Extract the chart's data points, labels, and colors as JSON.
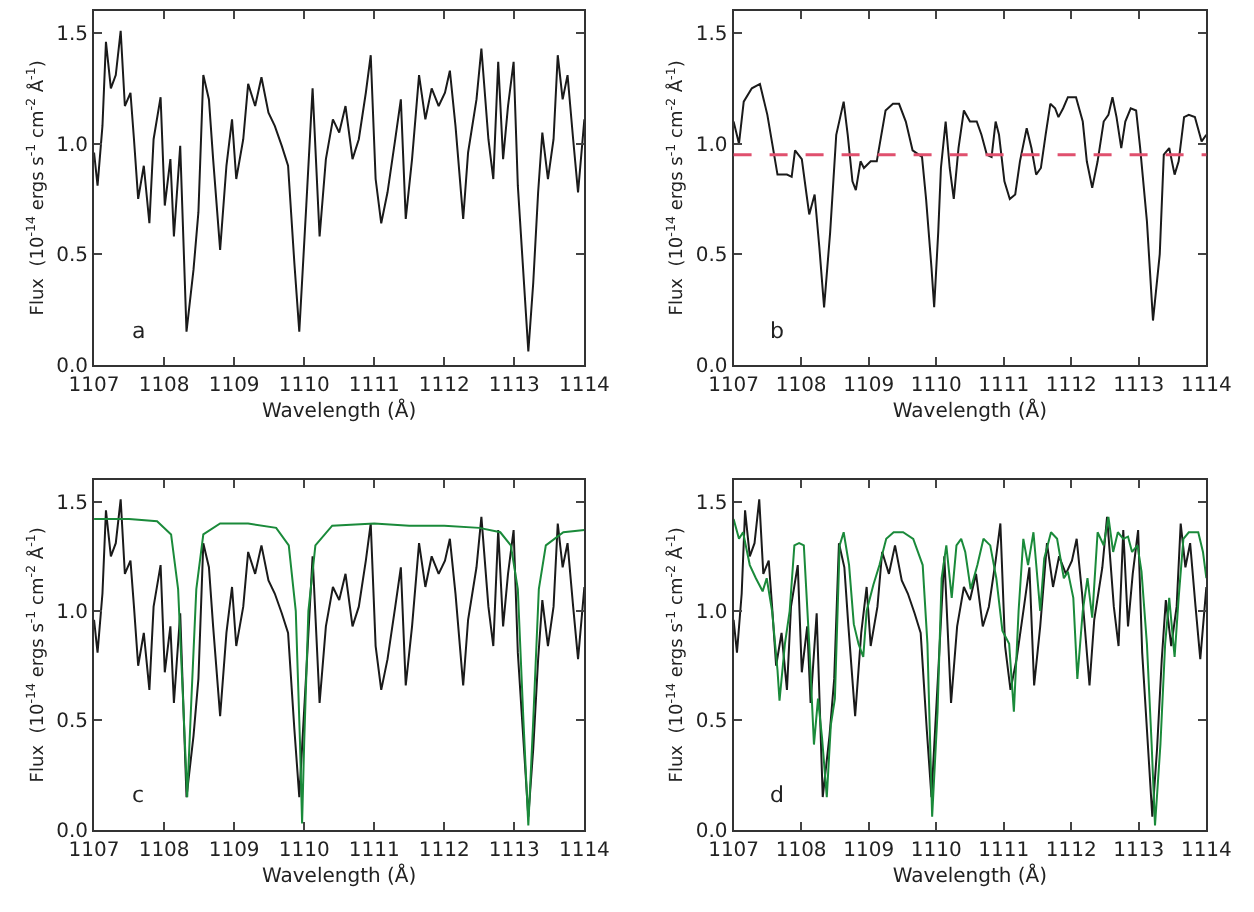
{
  "chart_data": [
    {
      "type": "line",
      "xlabel": "Wavelength (Å)",
      "ylabel": "Flux  (10$^{-14}$ ergs s$^{-1}$ cm$^{-2}$ Å$^{-1}$)",
      "xlim": [
        1107,
        1114
      ],
      "ylim": [
        0,
        1.6
      ],
      "xticks": [
        1107,
        1108,
        1109,
        1110,
        1111,
        1112,
        1113,
        1114
      ],
      "yticks": [
        {
          "value": 0,
          "label": "0.0"
        },
        {
          "value": 0.5,
          "label": "0.5"
        },
        {
          "value": 1,
          "label": "1.0"
        },
        {
          "value": 1.5,
          "label": "1.5"
        }
      ],
      "annotations": [
        "a"
      ],
      "series": [
        {
          "color": "#1a1a1a",
          "x": [
            1107.0,
            1107.05,
            1107.12,
            1107.17,
            1107.24,
            1107.31,
            1107.38,
            1107.44,
            1107.52,
            1107.57,
            1107.63,
            1107.71,
            1107.79,
            1107.85,
            1107.95,
            1108.01,
            1108.09,
            1108.14,
            1108.23,
            1108.32,
            1108.42,
            1108.49,
            1108.56,
            1108.64,
            1108.7,
            1108.8,
            1108.89,
            1108.97,
            1109.03,
            1109.13,
            1109.2,
            1109.3,
            1109.39,
            1109.49,
            1109.58,
            1109.68,
            1109.77,
            1109.86,
            1109.93,
            1110.03,
            1110.12,
            1110.22,
            1110.31,
            1110.41,
            1110.5,
            1110.59,
            1110.69,
            1110.78,
            1110.88,
            1110.95,
            1111.02,
            1111.1,
            1111.19,
            1111.3,
            1111.38,
            1111.45,
            1111.54,
            1111.64,
            1111.73,
            1111.82,
            1111.92,
            1112.01,
            1112.08,
            1112.16,
            1112.27,
            1112.34,
            1112.46,
            1112.53,
            1112.63,
            1112.7,
            1112.77,
            1112.84,
            1112.91,
            1112.99,
            1113.05,
            1113.12,
            1113.2,
            1113.27,
            1113.34,
            1113.4,
            1113.48,
            1113.56,
            1113.62,
            1113.69,
            1113.76,
            1113.84,
            1113.91,
            1114.0
          ],
          "values": [
            0.96,
            0.81,
            1.08,
            1.46,
            1.25,
            1.31,
            1.51,
            1.17,
            1.23,
            1.02,
            0.75,
            0.9,
            0.64,
            1.02,
            1.21,
            0.72,
            0.93,
            0.58,
            0.99,
            0.15,
            0.43,
            0.69,
            1.31,
            1.2,
            0.93,
            0.52,
            0.9,
            1.11,
            0.84,
            1.02,
            1.27,
            1.17,
            1.3,
            1.14,
            1.08,
            0.99,
            0.9,
            0.46,
            0.15,
            0.72,
            1.25,
            0.58,
            0.93,
            1.11,
            1.05,
            1.17,
            0.93,
            1.02,
            1.23,
            1.4,
            0.84,
            0.64,
            0.78,
            1.02,
            1.2,
            0.66,
            0.93,
            1.31,
            1.11,
            1.25,
            1.17,
            1.23,
            1.33,
            1.08,
            0.66,
            0.96,
            1.2,
            1.43,
            1.02,
            0.84,
            1.37,
            0.93,
            1.17,
            1.37,
            0.81,
            0.46,
            0.06,
            0.37,
            0.78,
            1.05,
            0.84,
            1.02,
            1.4,
            1.2,
            1.31,
            1.02,
            0.78,
            1.11
          ]
        }
      ]
    },
    {
      "type": "line",
      "xlabel": "Wavelength (Å)",
      "ylabel": "Flux  (10$^{-14}$ ergs s$^{-1}$ cm$^{-2}$ Å$^{-1}$)",
      "xlim": [
        1107,
        1114
      ],
      "ylim": [
        0,
        1.6
      ],
      "xticks": [
        1107,
        1108,
        1109,
        1110,
        1111,
        1112,
        1113,
        1114
      ],
      "yticks": [
        {
          "value": 0,
          "label": "0.0"
        },
        {
          "value": 0.5,
          "label": "0.5"
        },
        {
          "value": 1,
          "label": "1.0"
        },
        {
          "value": 1.5,
          "label": "1.5"
        }
      ],
      "annotations": [
        "b"
      ],
      "ref_lines": [
        {
          "axis": "y",
          "value": 0.95,
          "color": "#e0506e",
          "line_style": "dashed"
        }
      ],
      "series": [
        {
          "color": "#1a1a1a",
          "x": [
            1107.0,
            1107.08,
            1107.15,
            1107.27,
            1107.39,
            1107.5,
            1107.6,
            1107.65,
            1107.79,
            1107.86,
            1107.91,
            1108.01,
            1108.08,
            1108.12,
            1108.2,
            1108.27,
            1108.34,
            1108.43,
            1108.52,
            1108.63,
            1108.69,
            1108.76,
            1108.81,
            1108.88,
            1108.93,
            1109.03,
            1109.12,
            1109.25,
            1109.36,
            1109.45,
            1109.55,
            1109.65,
            1109.79,
            1109.85,
            1109.93,
            1109.97,
            1110.03,
            1110.07,
            1110.14,
            1110.2,
            1110.26,
            1110.33,
            1110.41,
            1110.5,
            1110.6,
            1110.67,
            1110.75,
            1110.82,
            1110.88,
            1110.93,
            1111.01,
            1111.09,
            1111.17,
            1111.24,
            1111.34,
            1111.41,
            1111.48,
            1111.55,
            1111.62,
            1111.69,
            1111.76,
            1111.81,
            1111.88,
            1111.95,
            1112.07,
            1112.17,
            1112.23,
            1112.31,
            1112.39,
            1112.48,
            1112.55,
            1112.61,
            1112.67,
            1112.74,
            1112.8,
            1112.88,
            1112.96,
            1113.02,
            1113.12,
            1113.21,
            1113.31,
            1113.37,
            1113.45,
            1113.53,
            1113.59,
            1113.67,
            1113.74,
            1113.83,
            1113.93,
            1114.0
          ],
          "values": [
            1.1,
            1.0,
            1.19,
            1.25,
            1.27,
            1.13,
            0.95,
            0.86,
            0.86,
            0.85,
            0.97,
            0.93,
            0.77,
            0.68,
            0.77,
            0.53,
            0.26,
            0.6,
            1.04,
            1.19,
            1.04,
            0.83,
            0.79,
            0.92,
            0.89,
            0.92,
            0.92,
            1.15,
            1.18,
            1.18,
            1.1,
            0.97,
            0.94,
            0.75,
            0.44,
            0.26,
            0.6,
            0.89,
            1.1,
            0.89,
            0.75,
            0.98,
            1.15,
            1.1,
            1.1,
            1.04,
            0.95,
            0.94,
            1.1,
            1.04,
            0.83,
            0.75,
            0.77,
            0.92,
            1.07,
            0.98,
            0.86,
            0.89,
            1.04,
            1.18,
            1.16,
            1.12,
            1.16,
            1.21,
            1.21,
            1.1,
            0.92,
            0.8,
            0.92,
            1.1,
            1.13,
            1.21,
            1.12,
            0.98,
            1.1,
            1.16,
            1.15,
            0.98,
            0.65,
            0.2,
            0.5,
            0.95,
            0.98,
            0.86,
            0.92,
            1.12,
            1.13,
            1.12,
            1.01,
            1.04
          ]
        }
      ]
    },
    {
      "type": "line",
      "xlabel": "Wavelength (Å)",
      "ylabel": "Flux  (10$^{-14}$ ergs s$^{-1}$ cm$^{-2}$ Å$^{-1}$)",
      "xlim": [
        1107,
        1114
      ],
      "ylim": [
        0,
        1.6
      ],
      "xticks": [
        1107,
        1108,
        1109,
        1110,
        1111,
        1112,
        1113,
        1114
      ],
      "yticks": [
        {
          "value": 0,
          "label": "0.0"
        },
        {
          "value": 0.5,
          "label": "0.5"
        },
        {
          "value": 1,
          "label": "1.0"
        },
        {
          "value": 1.5,
          "label": "1.5"
        }
      ],
      "annotations": [
        "c"
      ],
      "series": [
        {
          "color": "#1a1a1a",
          "x": [
            1107.0,
            1107.05,
            1107.12,
            1107.17,
            1107.24,
            1107.31,
            1107.38,
            1107.44,
            1107.52,
            1107.57,
            1107.63,
            1107.71,
            1107.79,
            1107.85,
            1107.95,
            1108.01,
            1108.09,
            1108.14,
            1108.23,
            1108.32,
            1108.42,
            1108.49,
            1108.56,
            1108.64,
            1108.7,
            1108.8,
            1108.89,
            1108.97,
            1109.03,
            1109.13,
            1109.2,
            1109.3,
            1109.39,
            1109.49,
            1109.58,
            1109.68,
            1109.77,
            1109.86,
            1109.93,
            1110.03,
            1110.12,
            1110.22,
            1110.31,
            1110.41,
            1110.5,
            1110.59,
            1110.69,
            1110.78,
            1110.88,
            1110.95,
            1111.02,
            1111.1,
            1111.19,
            1111.3,
            1111.38,
            1111.45,
            1111.54,
            1111.64,
            1111.73,
            1111.82,
            1111.92,
            1112.01,
            1112.08,
            1112.16,
            1112.27,
            1112.34,
            1112.46,
            1112.53,
            1112.63,
            1112.7,
            1112.77,
            1112.84,
            1112.91,
            1112.99,
            1113.05,
            1113.12,
            1113.2,
            1113.27,
            1113.34,
            1113.4,
            1113.48,
            1113.56,
            1113.62,
            1113.69,
            1113.76,
            1113.84,
            1113.91,
            1114.0
          ],
          "values": [
            0.96,
            0.81,
            1.08,
            1.46,
            1.25,
            1.31,
            1.51,
            1.17,
            1.23,
            1.02,
            0.75,
            0.9,
            0.64,
            1.02,
            1.21,
            0.72,
            0.93,
            0.58,
            0.99,
            0.15,
            0.43,
            0.69,
            1.31,
            1.2,
            0.93,
            0.52,
            0.9,
            1.11,
            0.84,
            1.02,
            1.27,
            1.17,
            1.3,
            1.14,
            1.08,
            0.99,
            0.9,
            0.46,
            0.15,
            0.72,
            1.25,
            0.58,
            0.93,
            1.11,
            1.05,
            1.17,
            0.93,
            1.02,
            1.23,
            1.4,
            0.84,
            0.64,
            0.78,
            1.02,
            1.2,
            0.66,
            0.93,
            1.31,
            1.11,
            1.25,
            1.17,
            1.23,
            1.33,
            1.08,
            0.66,
            0.96,
            1.2,
            1.43,
            1.02,
            0.84,
            1.37,
            0.93,
            1.17,
            1.37,
            0.81,
            0.46,
            0.06,
            0.37,
            0.78,
            1.05,
            0.84,
            1.02,
            1.4,
            1.2,
            1.31,
            1.02,
            0.78,
            1.11
          ]
        },
        {
          "color": "#1a8a3a",
          "x": [
            1107.0,
            1107.5,
            1107.9,
            1108.1,
            1108.2,
            1108.27,
            1108.33,
            1108.39,
            1108.46,
            1108.56,
            1108.8,
            1109.2,
            1109.6,
            1109.78,
            1109.88,
            1109.94,
            1109.97,
            1110.0,
            1110.06,
            1110.16,
            1110.4,
            1111.0,
            1111.5,
            1112.0,
            1112.5,
            1112.8,
            1112.95,
            1113.05,
            1113.13,
            1113.2,
            1113.27,
            1113.35,
            1113.45,
            1113.7,
            1114.0
          ],
          "values": [
            1.42,
            1.42,
            1.41,
            1.35,
            1.1,
            0.6,
            0.15,
            0.6,
            1.1,
            1.35,
            1.4,
            1.4,
            1.38,
            1.3,
            1.0,
            0.4,
            0.03,
            0.4,
            1.0,
            1.3,
            1.39,
            1.4,
            1.39,
            1.39,
            1.38,
            1.36,
            1.3,
            1.1,
            0.5,
            0.02,
            0.5,
            1.1,
            1.3,
            1.36,
            1.37
          ]
        }
      ]
    },
    {
      "type": "line",
      "xlabel": "Wavelength (Å)",
      "ylabel": "Flux  (10$^{-14}$ ergs s$^{-1}$ cm$^{-2}$ Å$^{-1}$)",
      "xlim": [
        1107,
        1114
      ],
      "ylim": [
        0,
        1.6
      ],
      "xticks": [
        1107,
        1108,
        1109,
        1110,
        1111,
        1112,
        1113,
        1114
      ],
      "yticks": [
        {
          "value": 0,
          "label": "0.0"
        },
        {
          "value": 0.5,
          "label": "0.5"
        },
        {
          "value": 1,
          "label": "1.0"
        },
        {
          "value": 1.5,
          "label": "1.5"
        }
      ],
      "annotations": [
        "d"
      ],
      "series": [
        {
          "color": "#1a1a1a",
          "x": [
            1107.0,
            1107.05,
            1107.12,
            1107.17,
            1107.24,
            1107.31,
            1107.38,
            1107.44,
            1107.52,
            1107.57,
            1107.63,
            1107.71,
            1107.79,
            1107.85,
            1107.95,
            1108.01,
            1108.09,
            1108.14,
            1108.23,
            1108.32,
            1108.42,
            1108.49,
            1108.56,
            1108.64,
            1108.7,
            1108.8,
            1108.89,
            1108.97,
            1109.03,
            1109.13,
            1109.2,
            1109.3,
            1109.39,
            1109.49,
            1109.58,
            1109.68,
            1109.77,
            1109.86,
            1109.93,
            1110.03,
            1110.12,
            1110.22,
            1110.31,
            1110.41,
            1110.5,
            1110.59,
            1110.69,
            1110.78,
            1110.88,
            1110.95,
            1111.02,
            1111.1,
            1111.19,
            1111.3,
            1111.38,
            1111.45,
            1111.54,
            1111.64,
            1111.73,
            1111.82,
            1111.92,
            1112.01,
            1112.08,
            1112.16,
            1112.27,
            1112.34,
            1112.46,
            1112.53,
            1112.63,
            1112.7,
            1112.77,
            1112.84,
            1112.91,
            1112.99,
            1113.05,
            1113.12,
            1113.2,
            1113.27,
            1113.34,
            1113.4,
            1113.48,
            1113.56,
            1113.62,
            1113.69,
            1113.76,
            1113.84,
            1113.91,
            1114.0
          ],
          "values": [
            0.96,
            0.81,
            1.08,
            1.46,
            1.25,
            1.31,
            1.51,
            1.17,
            1.23,
            1.02,
            0.75,
            0.9,
            0.64,
            1.02,
            1.21,
            0.72,
            0.93,
            0.58,
            0.99,
            0.15,
            0.43,
            0.69,
            1.31,
            1.2,
            0.93,
            0.52,
            0.9,
            1.11,
            0.84,
            1.02,
            1.27,
            1.17,
            1.3,
            1.14,
            1.08,
            0.99,
            0.9,
            0.46,
            0.15,
            0.72,
            1.25,
            0.58,
            0.93,
            1.11,
            1.05,
            1.17,
            0.93,
            1.02,
            1.23,
            1.4,
            0.84,
            0.64,
            0.78,
            1.02,
            1.2,
            0.66,
            0.93,
            1.31,
            1.11,
            1.25,
            1.17,
            1.23,
            1.33,
            1.08,
            0.66,
            0.96,
            1.2,
            1.43,
            1.02,
            0.84,
            1.37,
            0.93,
            1.17,
            1.37,
            0.81,
            0.46,
            0.06,
            0.37,
            0.78,
            1.05,
            0.84,
            1.02,
            1.4,
            1.2,
            1.31,
            1.02,
            0.78,
            1.11
          ]
        },
        {
          "color": "#1a8a3a",
          "x": [
            1107.0,
            1107.08,
            1107.14,
            1107.24,
            1107.33,
            1107.43,
            1107.49,
            1107.57,
            1107.65,
            1107.68,
            1107.76,
            1107.83,
            1107.9,
            1107.97,
            1108.04,
            1108.12,
            1108.19,
            1108.25,
            1108.31,
            1108.38,
            1108.44,
            1108.5,
            1108.57,
            1108.63,
            1108.71,
            1108.78,
            1108.85,
            1108.92,
            1108.97,
            1109.07,
            1109.16,
            1109.26,
            1109.37,
            1109.51,
            1109.66,
            1109.8,
            1109.87,
            1109.94,
            1110.02,
            1110.08,
            1110.15,
            1110.23,
            1110.3,
            1110.37,
            1110.43,
            1110.51,
            1110.61,
            1110.7,
            1110.8,
            1110.89,
            1110.98,
            1111.08,
            1111.15,
            1111.22,
            1111.29,
            1111.36,
            1111.44,
            1111.54,
            1111.6,
            1111.7,
            1111.79,
            1111.89,
            1111.95,
            1112.03,
            1112.09,
            1112.17,
            1112.24,
            1112.31,
            1112.39,
            1112.48,
            1112.55,
            1112.62,
            1112.69,
            1112.77,
            1112.84,
            1112.9,
            1112.98,
            1113.04,
            1113.12,
            1113.19,
            1113.24,
            1113.32,
            1113.39,
            1113.45,
            1113.53,
            1113.59,
            1113.66,
            1113.74,
            1113.88,
            1113.95,
            1114.0
          ],
          "values": [
            1.42,
            1.33,
            1.36,
            1.21,
            1.15,
            1.09,
            1.15,
            1.0,
            0.73,
            0.59,
            0.85,
            1.0,
            1.3,
            1.31,
            1.3,
            0.85,
            0.39,
            0.6,
            0.42,
            0.15,
            0.48,
            0.6,
            1.3,
            1.36,
            1.21,
            0.94,
            0.85,
            0.79,
            1.0,
            1.12,
            1.21,
            1.33,
            1.36,
            1.36,
            1.33,
            1.21,
            0.85,
            0.06,
            0.54,
            1.15,
            1.3,
            1.06,
            1.3,
            1.33,
            1.27,
            1.1,
            1.21,
            1.33,
            1.3,
            1.15,
            0.91,
            0.85,
            0.54,
            1.0,
            1.33,
            1.21,
            1.36,
            1.0,
            1.24,
            1.36,
            1.33,
            1.15,
            1.18,
            1.06,
            0.69,
            1.0,
            1.15,
            0.97,
            1.36,
            1.3,
            1.43,
            1.27,
            1.36,
            1.33,
            1.34,
            1.27,
            1.3,
            1.18,
            0.85,
            0.39,
            0.02,
            0.39,
            0.85,
            1.06,
            0.79,
            1.06,
            1.33,
            1.36,
            1.36,
            1.27,
            1.15
          ]
        }
      ]
    }
  ]
}
